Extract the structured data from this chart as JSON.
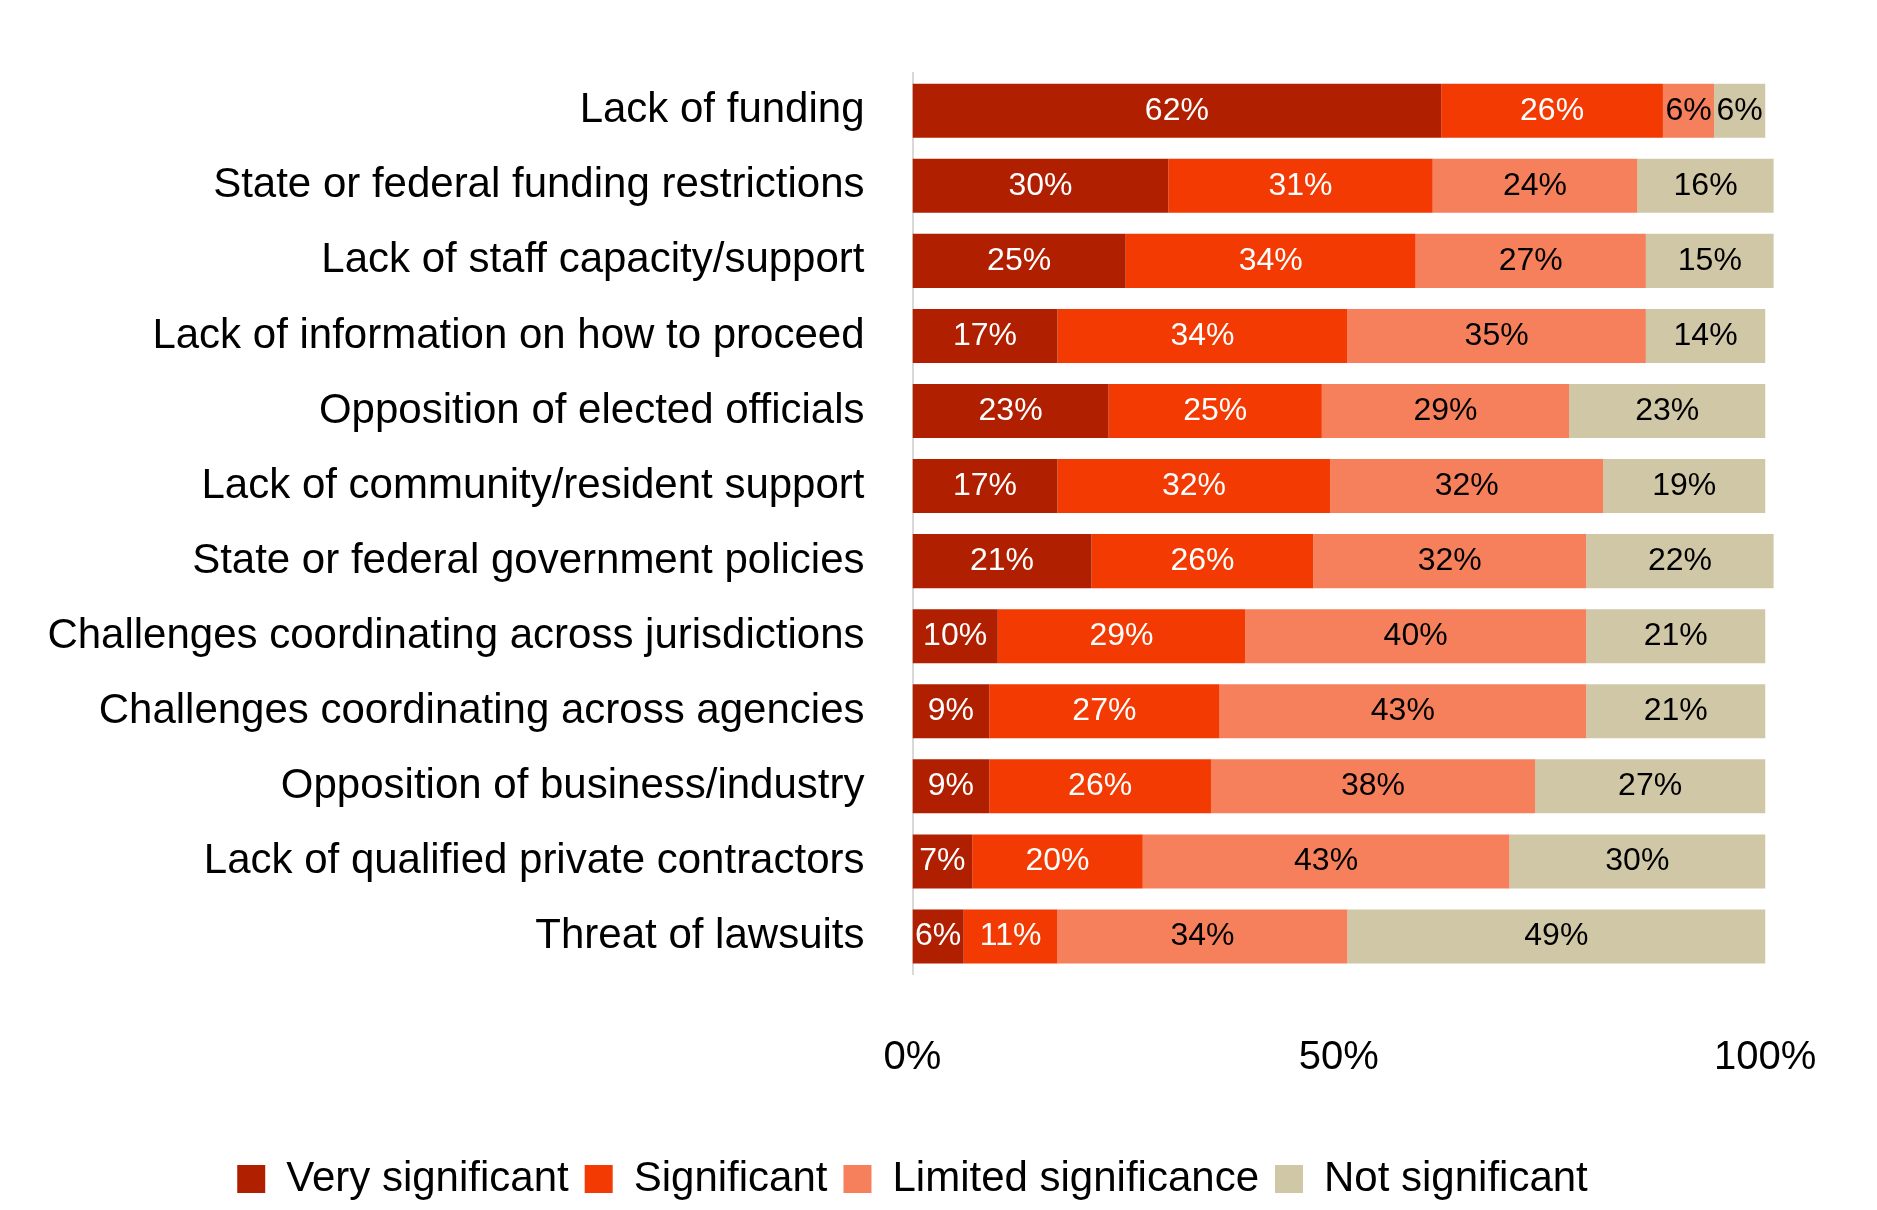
{
  "chart_data": {
    "type": "bar",
    "orientation": "horizontal",
    "stacked": true,
    "legend": "bottom",
    "grid": false,
    "categories": [
      "Lack of funding",
      "State or federal funding restrictions",
      "Lack of staff capacity/support",
      "Lack of information on how to proceed",
      "Opposition of elected officials",
      "Lack of community/resident support",
      "State or federal government policies",
      "Challenges coordinating across jurisdictions",
      "Challenges coordinating across agencies",
      "Opposition of business/industry",
      "Lack of qualified private contractors",
      "Threat of lawsuits"
    ],
    "xlim": [
      0,
      101
    ],
    "xticks": [
      {
        "value": 0,
        "label": "0%"
      },
      {
        "value": 50,
        "label": "50%"
      },
      {
        "value": 100,
        "label": "100%"
      }
    ],
    "series": [
      {
        "name": "Very significant",
        "color": "#b01f00",
        "values": [
          62,
          30,
          25,
          17,
          23,
          17,
          21,
          10,
          9,
          9,
          7,
          6
        ],
        "value_labels": [
          "62%",
          "30%",
          "25%",
          "17%",
          "23%",
          "17%",
          "21%",
          "10%",
          "9%",
          "9%",
          "7%",
          "6%"
        ]
      },
      {
        "name": "Significant",
        "color": "#f23a02",
        "values": [
          26,
          31,
          34,
          34,
          25,
          32,
          26,
          29,
          27,
          26,
          20,
          11
        ],
        "value_labels": [
          "26%",
          "31%",
          "34%",
          "34%",
          "25%",
          "32%",
          "26%",
          "29%",
          "27%",
          "26%",
          "20%",
          "11%"
        ]
      },
      {
        "name": "Limited significance",
        "color": "#f6805c",
        "values": [
          6,
          24,
          27,
          35,
          29,
          32,
          32,
          40,
          43,
          38,
          43,
          34
        ],
        "value_labels": [
          "6%",
          "24%",
          "27%",
          "35%",
          "29%",
          "32%",
          "32%",
          "40%",
          "43%",
          "38%",
          "43%",
          "34%"
        ]
      },
      {
        "name": "Not significant",
        "color": "#cfc7a6",
        "values": [
          6,
          16,
          15,
          14,
          23,
          19,
          22,
          21,
          21,
          27,
          30,
          49
        ],
        "value_labels": [
          "6%",
          "16%",
          "15%",
          "14%",
          "23%",
          "19%",
          "22%",
          "21%",
          "21%",
          "27%",
          "30%",
          "49%"
        ]
      }
    ]
  }
}
